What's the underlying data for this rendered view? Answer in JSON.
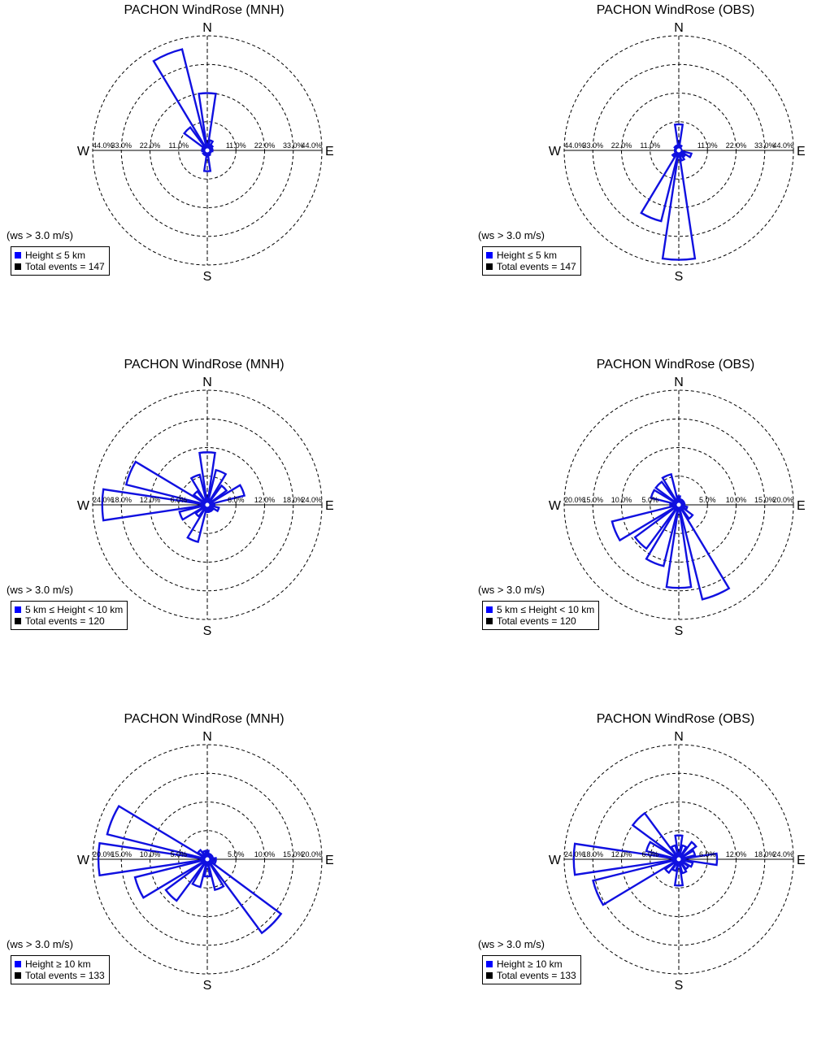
{
  "colors": {
    "petal": "#1010e0",
    "legend_series": "#0000ff",
    "legend_total": "#000000",
    "axis": "#000000"
  },
  "direction_labels": {
    "north": "N",
    "south": "S",
    "east": "E",
    "west": "W"
  },
  "chart_data": [
    {
      "type": "windrose",
      "title": "PACHON WindRose (MNH)",
      "condition": "(ws > 3.0 m/s)",
      "legend": {
        "series": "Height ≤  5 km",
        "total": "Total events = 147"
      },
      "rmax": 44.0,
      "tick_labels": [
        "11.0%",
        "22.0%",
        "33.0%",
        "44.0%"
      ],
      "directions_deg": [
        0,
        22.5,
        45,
        67.5,
        90,
        112.5,
        135,
        157.5,
        180,
        202.5,
        225,
        247.5,
        270,
        292.5,
        315,
        337.5
      ],
      "values_pct": [
        22.0,
        4.0,
        2.5,
        2.0,
        2.0,
        1.5,
        1.5,
        2.0,
        8.0,
        2.0,
        2.0,
        1.5,
        2.0,
        2.0,
        11.0,
        40.0
      ]
    },
    {
      "type": "windrose",
      "title": "PACHON WindRose (OBS)",
      "condition": "(ws > 3.0 m/s)",
      "legend": {
        "series": "Height ≤  5 km",
        "total": "Total events = 147"
      },
      "rmax": 44.0,
      "tick_labels": [
        "11.0%",
        "22.0%",
        "33.0%",
        "44.0%"
      ],
      "directions_deg": [
        0,
        22.5,
        45,
        67.5,
        90,
        112.5,
        135,
        157.5,
        180,
        202.5,
        225,
        247.5,
        270,
        292.5,
        315,
        337.5
      ],
      "values_pct": [
        10.0,
        2.0,
        1.0,
        1.0,
        1.0,
        5.0,
        3.0,
        4.0,
        42.0,
        28.0,
        3.0,
        1.5,
        1.5,
        1.5,
        2.0,
        2.0
      ]
    },
    {
      "type": "windrose",
      "title": "PACHON WindRose (MNH)",
      "condition": "(ws > 3.0 m/s)",
      "legend": {
        "series": "5 km ≤  Height  < 10 km",
        "total": "Total events = 120"
      },
      "rmax": 24.0,
      "tick_labels": [
        "6.0%",
        "12.0%",
        "18.0%",
        "24.0%"
      ],
      "directions_deg": [
        0,
        22.5,
        45,
        67.5,
        90,
        112.5,
        135,
        157.5,
        180,
        202.5,
        225,
        247.5,
        270,
        292.5,
        315,
        337.5
      ],
      "values_pct": [
        11.0,
        7.5,
        5.0,
        8.0,
        1.5,
        2.5,
        1.5,
        1.5,
        1.5,
        8.0,
        3.0,
        6.0,
        22.0,
        17.5,
        3.5,
        6.5
      ]
    },
    {
      "type": "windrose",
      "title": "PACHON WindRose (OBS)",
      "condition": "(ws > 3.0 m/s)",
      "legend": {
        "series": "5 km ≤  Height  < 10 km",
        "total": "Total events = 120"
      },
      "rmax": 20.0,
      "tick_labels": [
        "5.0%",
        "10.0%",
        "15.0%",
        "20.0%"
      ],
      "directions_deg": [
        0,
        22.5,
        45,
        67.5,
        90,
        112.5,
        135,
        157.5,
        180,
        202.5,
        225,
        247.5,
        270,
        292.5,
        315,
        337.5
      ],
      "values_pct": [
        1.5,
        1.0,
        1.0,
        1.0,
        1.0,
        1.5,
        3.0,
        17.0,
        14.5,
        11.0,
        9.5,
        12.0,
        1.5,
        5.0,
        5.0,
        5.5
      ]
    },
    {
      "type": "windrose",
      "title": "PACHON WindRose (MNH)",
      "condition": "(ws > 3.0 m/s)",
      "legend": {
        "series": "Height ≥  10 km",
        "total": "Total events = 133"
      },
      "rmax": 20.0,
      "tick_labels": [
        "5.0%",
        "10.0%",
        "15.0%",
        "20.0%"
      ],
      "directions_deg": [
        0,
        22.5,
        45,
        67.5,
        90,
        112.5,
        135,
        157.5,
        180,
        202.5,
        225,
        247.5,
        270,
        292.5,
        315,
        337.5
      ],
      "values_pct": [
        1.5,
        1.0,
        1.0,
        1.0,
        1.5,
        1.5,
        16.0,
        5.5,
        3.0,
        5.0,
        9.0,
        13.0,
        19.0,
        18.0,
        2.0,
        1.5
      ]
    },
    {
      "type": "windrose",
      "title": "PACHON WindRose (OBS)",
      "condition": "(ws > 3.0 m/s)",
      "legend": {
        "series": "Height ≥  10 km",
        "total": "Total events = 133"
      },
      "rmax": 24.0,
      "tick_labels": [
        "6.0%",
        "12.0%",
        "18.0%",
        "24.0%"
      ],
      "directions_deg": [
        0,
        22.5,
        45,
        67.5,
        90,
        112.5,
        135,
        157.5,
        180,
        202.5,
        225,
        247.5,
        270,
        292.5,
        315,
        337.5
      ],
      "values_pct": [
        5.0,
        3.0,
        4.5,
        3.5,
        8.0,
        3.0,
        2.5,
        3.0,
        5.5,
        2.5,
        3.5,
        18.5,
        22.0,
        7.0,
        12.0,
        3.0
      ]
    }
  ]
}
